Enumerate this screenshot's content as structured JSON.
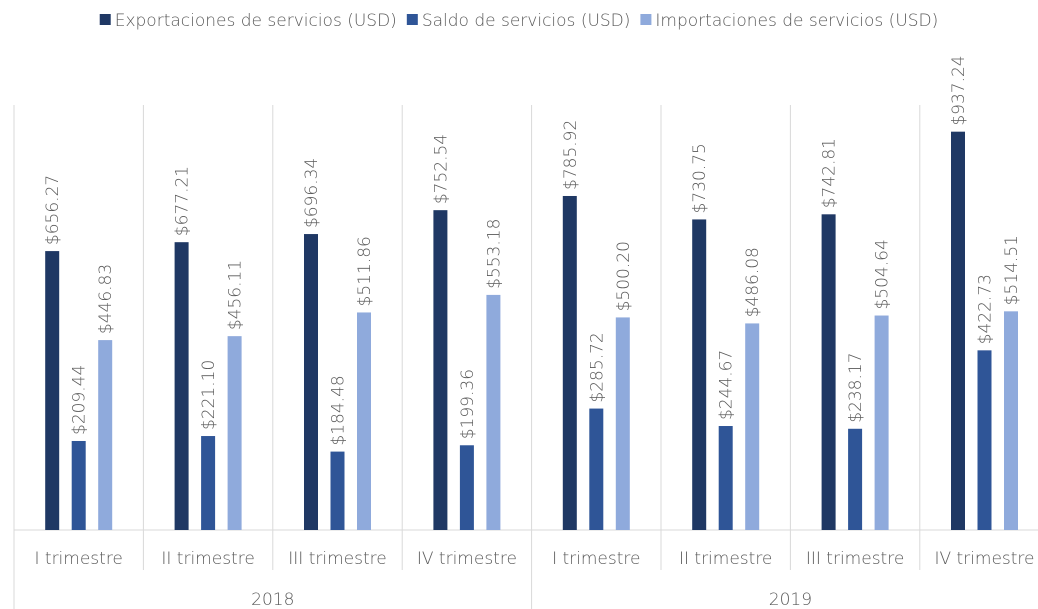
{
  "chart_data": {
    "type": "bar",
    "groups": [
      "2018",
      "2019"
    ],
    "categories": [
      "I trimestre",
      "II trimestre",
      "III trimestre",
      "IV trimestre",
      "I trimestre",
      "II trimestre",
      "III trimestre",
      "IV trimestre"
    ],
    "series": [
      {
        "name": "Exportaciones de servicios (USD)",
        "color": "#1f3864",
        "values": [
          656.27,
          677.21,
          696.34,
          752.54,
          785.92,
          730.75,
          742.81,
          937.24
        ],
        "value_labels": [
          "$656.27",
          "$677.21",
          "$696.34",
          "$752.54",
          "$785.92",
          "$730.75",
          "$742.81",
          "$937.24"
        ]
      },
      {
        "name": "Saldo de servicios (USD)",
        "color": "#2f5597",
        "values": [
          209.44,
          221.1,
          184.48,
          199.36,
          285.72,
          244.67,
          238.17,
          422.73
        ],
        "value_labels": [
          "$209.44",
          "$221.10",
          "$184.48",
          "$199.36",
          "$285.72",
          "$244.67",
          "$238.17",
          "$422.73"
        ]
      },
      {
        "name": "Importaciones de servicios (USD)",
        "color": "#8faadc",
        "values": [
          446.83,
          456.11,
          511.86,
          553.18,
          500.2,
          486.08,
          504.64,
          514.51
        ],
        "value_labels": [
          "$446.83",
          "$456.11",
          "$511.86",
          "$553.18",
          "$500.20",
          "$486.08",
          "$504.64",
          "$514.51"
        ]
      }
    ],
    "ylim": [
      0,
      1000
    ],
    "legend": "top"
  }
}
